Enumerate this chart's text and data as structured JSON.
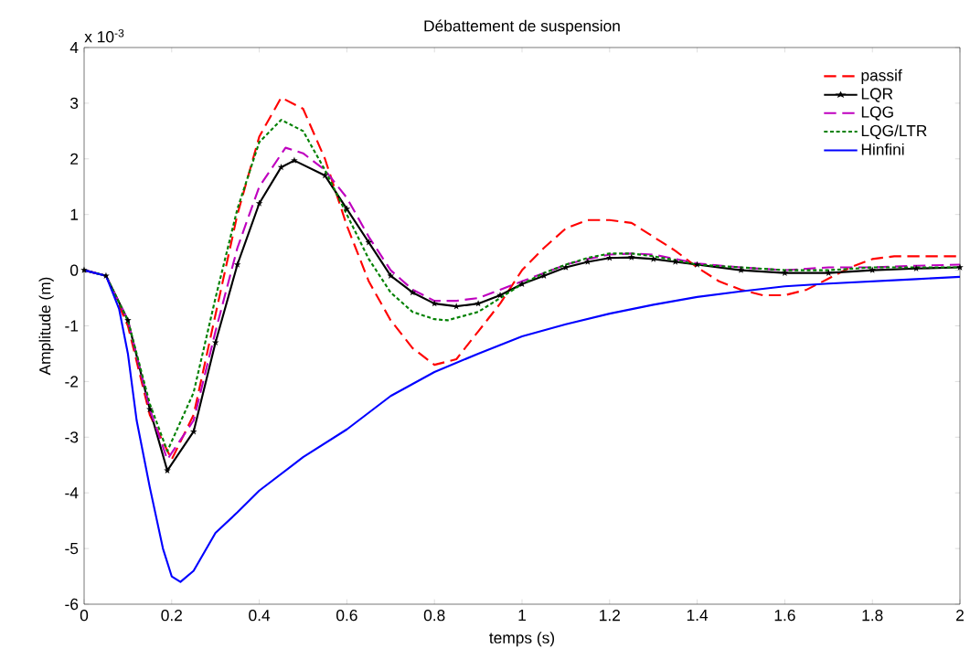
{
  "chart_data": {
    "type": "line",
    "title": "Débattement de suspension",
    "xlabel": "temps (s)",
    "ylabel": "Amplitude (m)",
    "annotations": [
      "x 10$^{-3}$"
    ],
    "xlim": [
      0,
      2
    ],
    "ylim": [
      -6,
      4
    ],
    "xticks": [
      0,
      0.2,
      0.4,
      0.6,
      0.8,
      1,
      1.2,
      1.4,
      1.6,
      1.8,
      2
    ],
    "yticks": [
      -6,
      -5,
      -4,
      -3,
      -2,
      -1,
      0,
      1,
      2,
      3,
      4
    ],
    "grid": false,
    "legend": "top right",
    "series": [
      {
        "name": "passif",
        "color": "#ff0000",
        "line_style": "dashed",
        "marker": "none",
        "x": [
          0,
          0.05,
          0.1,
          0.15,
          0.2,
          0.25,
          0.3,
          0.35,
          0.4,
          0.45,
          0.5,
          0.55,
          0.6,
          0.65,
          0.7,
          0.75,
          0.8,
          0.85,
          0.9,
          0.95,
          1.0,
          1.05,
          1.1,
          1.15,
          1.2,
          1.25,
          1.3,
          1.35,
          1.4,
          1.45,
          1.5,
          1.55,
          1.6,
          1.65,
          1.7,
          1.75,
          1.8,
          1.85,
          1.9,
          2.0
        ],
        "values": [
          0,
          -0.1,
          -1.0,
          -2.6,
          -3.4,
          -2.6,
          -0.8,
          1.0,
          2.4,
          3.1,
          2.9,
          2.0,
          0.8,
          -0.2,
          -0.9,
          -1.4,
          -1.7,
          -1.6,
          -1.1,
          -0.6,
          0.0,
          0.4,
          0.75,
          0.9,
          0.9,
          0.85,
          0.6,
          0.35,
          0.05,
          -0.2,
          -0.35,
          -0.45,
          -0.45,
          -0.35,
          -0.15,
          0.05,
          0.2,
          0.25,
          0.25,
          0.25
        ]
      },
      {
        "name": "LQR",
        "color": "#000000",
        "line_style": "solid",
        "marker": "star",
        "x": [
          0,
          0.05,
          0.1,
          0.15,
          0.19,
          0.25,
          0.3,
          0.35,
          0.4,
          0.45,
          0.48,
          0.55,
          0.6,
          0.65,
          0.7,
          0.75,
          0.8,
          0.85,
          0.9,
          0.95,
          1.0,
          1.05,
          1.1,
          1.15,
          1.2,
          1.25,
          1.3,
          1.35,
          1.4,
          1.5,
          1.6,
          1.7,
          1.8,
          1.9,
          2.0
        ],
        "values": [
          0,
          -0.1,
          -0.9,
          -2.5,
          -3.6,
          -2.9,
          -1.3,
          0.1,
          1.2,
          1.85,
          1.97,
          1.7,
          1.1,
          0.5,
          -0.1,
          -0.4,
          -0.6,
          -0.65,
          -0.6,
          -0.45,
          -0.25,
          -0.1,
          0.05,
          0.15,
          0.22,
          0.23,
          0.2,
          0.15,
          0.1,
          0.0,
          -0.05,
          -0.05,
          0.0,
          0.03,
          0.05
        ]
      },
      {
        "name": "LQG",
        "color": "#bf00bf",
        "line_style": "dashed",
        "marker": "none",
        "x": [
          0,
          0.05,
          0.1,
          0.15,
          0.19,
          0.25,
          0.3,
          0.35,
          0.4,
          0.46,
          0.5,
          0.55,
          0.6,
          0.65,
          0.7,
          0.75,
          0.8,
          0.85,
          0.9,
          0.95,
          1.0,
          1.05,
          1.1,
          1.15,
          1.2,
          1.25,
          1.3,
          1.35,
          1.4,
          1.5,
          1.6,
          1.7,
          1.8,
          1.9,
          2.0
        ],
        "values": [
          0,
          -0.1,
          -0.9,
          -2.5,
          -3.4,
          -2.7,
          -1.1,
          0.4,
          1.5,
          2.2,
          2.1,
          1.8,
          1.3,
          0.6,
          0.0,
          -0.35,
          -0.55,
          -0.55,
          -0.5,
          -0.35,
          -0.2,
          -0.05,
          0.1,
          0.2,
          0.28,
          0.3,
          0.28,
          0.2,
          0.12,
          0.05,
          0.0,
          0.05,
          0.05,
          0.08,
          0.1
        ]
      },
      {
        "name": "LQG/LTR",
        "color": "#008000",
        "line_style": "dotted",
        "marker": "none",
        "x": [
          0,
          0.05,
          0.1,
          0.15,
          0.19,
          0.25,
          0.3,
          0.35,
          0.4,
          0.45,
          0.5,
          0.55,
          0.6,
          0.65,
          0.7,
          0.75,
          0.8,
          0.83,
          0.9,
          0.95,
          1.0,
          1.05,
          1.1,
          1.15,
          1.2,
          1.25,
          1.3,
          1.35,
          1.4,
          1.5,
          1.6,
          1.7,
          1.8,
          1.9,
          2.0
        ],
        "values": [
          0,
          -0.1,
          -0.9,
          -2.4,
          -3.25,
          -2.2,
          -0.5,
          1.1,
          2.3,
          2.7,
          2.5,
          1.8,
          1.0,
          0.2,
          -0.4,
          -0.75,
          -0.88,
          -0.9,
          -0.75,
          -0.5,
          -0.25,
          -0.05,
          0.1,
          0.22,
          0.3,
          0.3,
          0.25,
          0.18,
          0.1,
          0.05,
          0.0,
          0.0,
          0.05,
          0.05,
          0.05
        ]
      },
      {
        "name": "Hinfini",
        "color": "#0000ff",
        "line_style": "solid",
        "marker": "none",
        "x": [
          0,
          0.05,
          0.08,
          0.1,
          0.12,
          0.15,
          0.18,
          0.2,
          0.22,
          0.25,
          0.3,
          0.35,
          0.4,
          0.5,
          0.6,
          0.7,
          0.8,
          0.9,
          1.0,
          1.1,
          1.2,
          1.3,
          1.4,
          1.5,
          1.6,
          1.7,
          1.8,
          1.9,
          2.0
        ],
        "values": [
          0,
          -0.1,
          -0.7,
          -1.5,
          -2.7,
          -3.9,
          -5.0,
          -5.5,
          -5.6,
          -5.4,
          -4.72,
          -4.35,
          -3.96,
          -3.36,
          -2.86,
          -2.26,
          -1.83,
          -1.5,
          -1.19,
          -0.97,
          -0.78,
          -0.62,
          -0.48,
          -0.38,
          -0.29,
          -0.24,
          -0.2,
          -0.16,
          -0.12
        ]
      }
    ]
  }
}
